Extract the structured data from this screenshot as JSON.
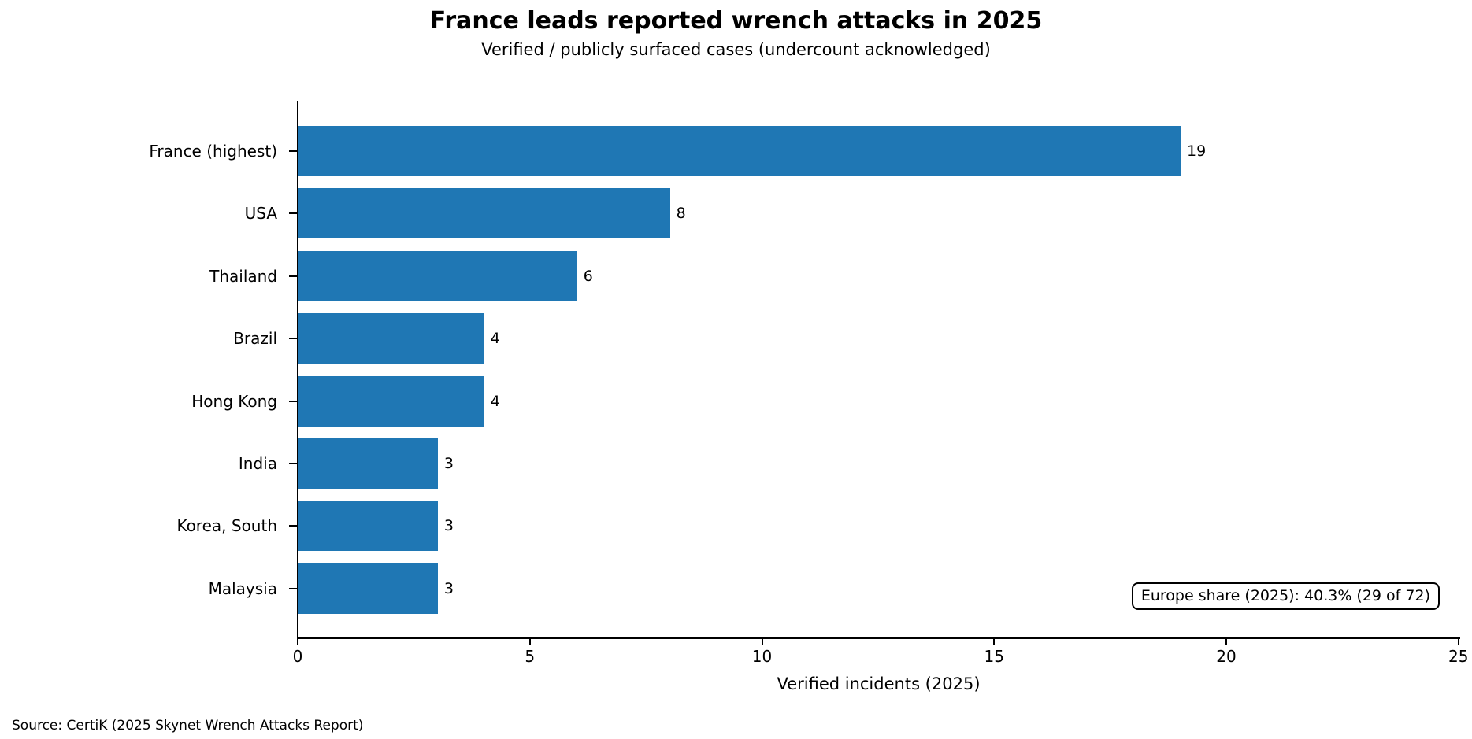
{
  "chart_data": {
    "type": "bar",
    "orientation": "horizontal",
    "title": "France leads reported wrench attacks in 2025",
    "subtitle": "Verified / publicly surfaced cases (undercount acknowledged)",
    "categories": [
      "France (highest)",
      "USA",
      "Thailand",
      "Brazil",
      "Hong Kong",
      "India",
      "Korea, South",
      "Malaysia"
    ],
    "values": [
      19,
      8,
      6,
      4,
      4,
      3,
      3,
      3
    ],
    "xlabel": "Verified incidents (2025)",
    "xlim": [
      0,
      25
    ],
    "xticks": [
      0,
      5,
      10,
      15,
      20,
      25
    ],
    "grid": false,
    "legend": "none",
    "bar_color": "#1f77b4",
    "axis_color": "#000000",
    "annotation": "Europe share (2025): 40.3% (29 of 72)",
    "source": "Source: CertiK (2025 Skynet Wrench Attacks Report)"
  }
}
